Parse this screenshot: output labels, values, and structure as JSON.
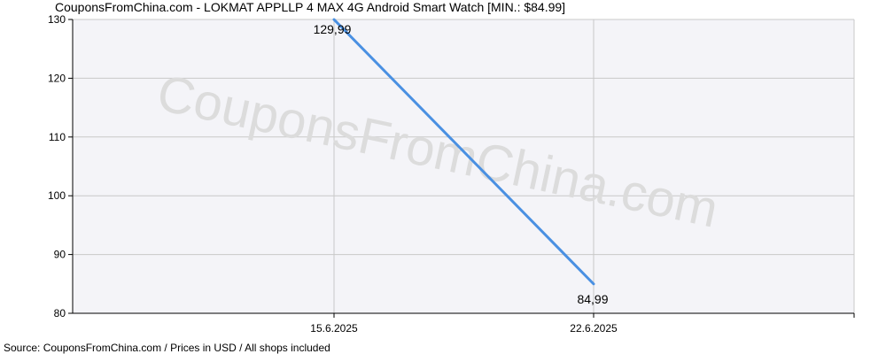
{
  "chart_data": {
    "type": "line",
    "title": "CouponsFromChina.com - LOKMAT APPLLP 4 MAX 4G Android Smart Watch [MIN.: $84.99]",
    "xlabel": "",
    "ylabel": "",
    "ylim": [
      80,
      130
    ],
    "yticks": [
      80,
      90,
      100,
      110,
      120,
      130
    ],
    "xticks": [
      "15.6.2025",
      "22.6.2025"
    ],
    "grid": true,
    "series": [
      {
        "color": "#4a90e2",
        "points": [
          {
            "x": "15.6.2025",
            "y": 129.99,
            "label": "129,99"
          },
          {
            "x": "22.6.2025",
            "y": 84.99,
            "label": "84,99"
          }
        ]
      }
    ],
    "watermark": "CouponsFromChina.com",
    "source": "Source:  CouponsFromChina.com / Prices in USD / All shops included"
  }
}
